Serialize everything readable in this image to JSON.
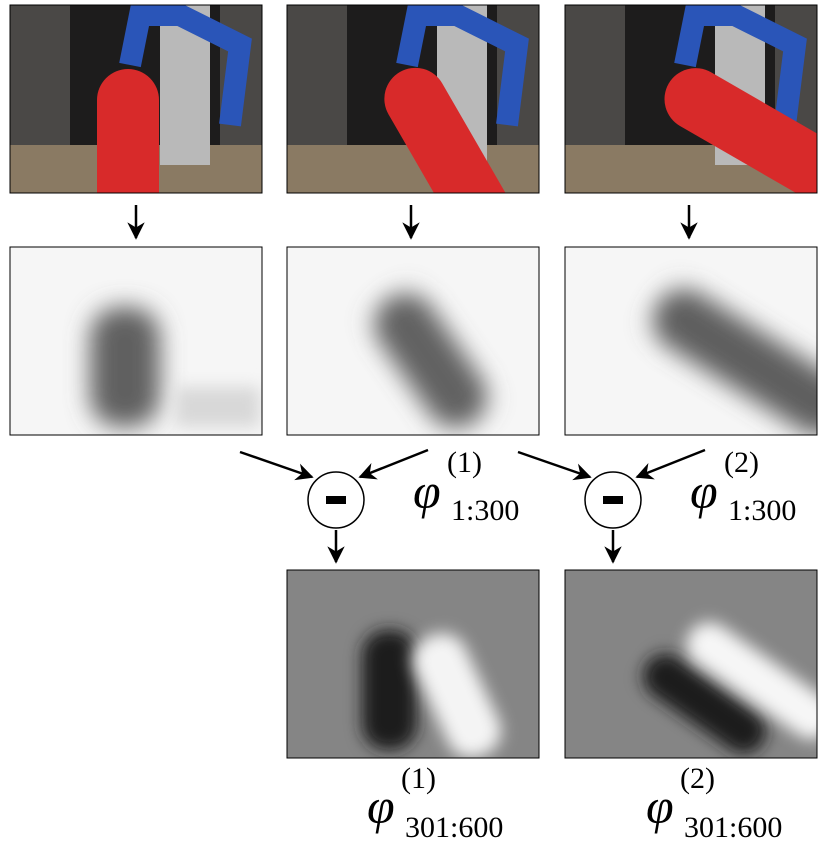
{
  "features": [
    {
      "symbol": "φ",
      "superscript": "(1)",
      "subscript": "1:300"
    },
    {
      "symbol": "φ",
      "superscript": "(2)",
      "subscript": "1:300"
    },
    {
      "symbol": "φ",
      "superscript": "(1)",
      "subscript": "301:600"
    },
    {
      "symbol": "φ",
      "superscript": "(2)",
      "subscript": "301:600"
    }
  ]
}
